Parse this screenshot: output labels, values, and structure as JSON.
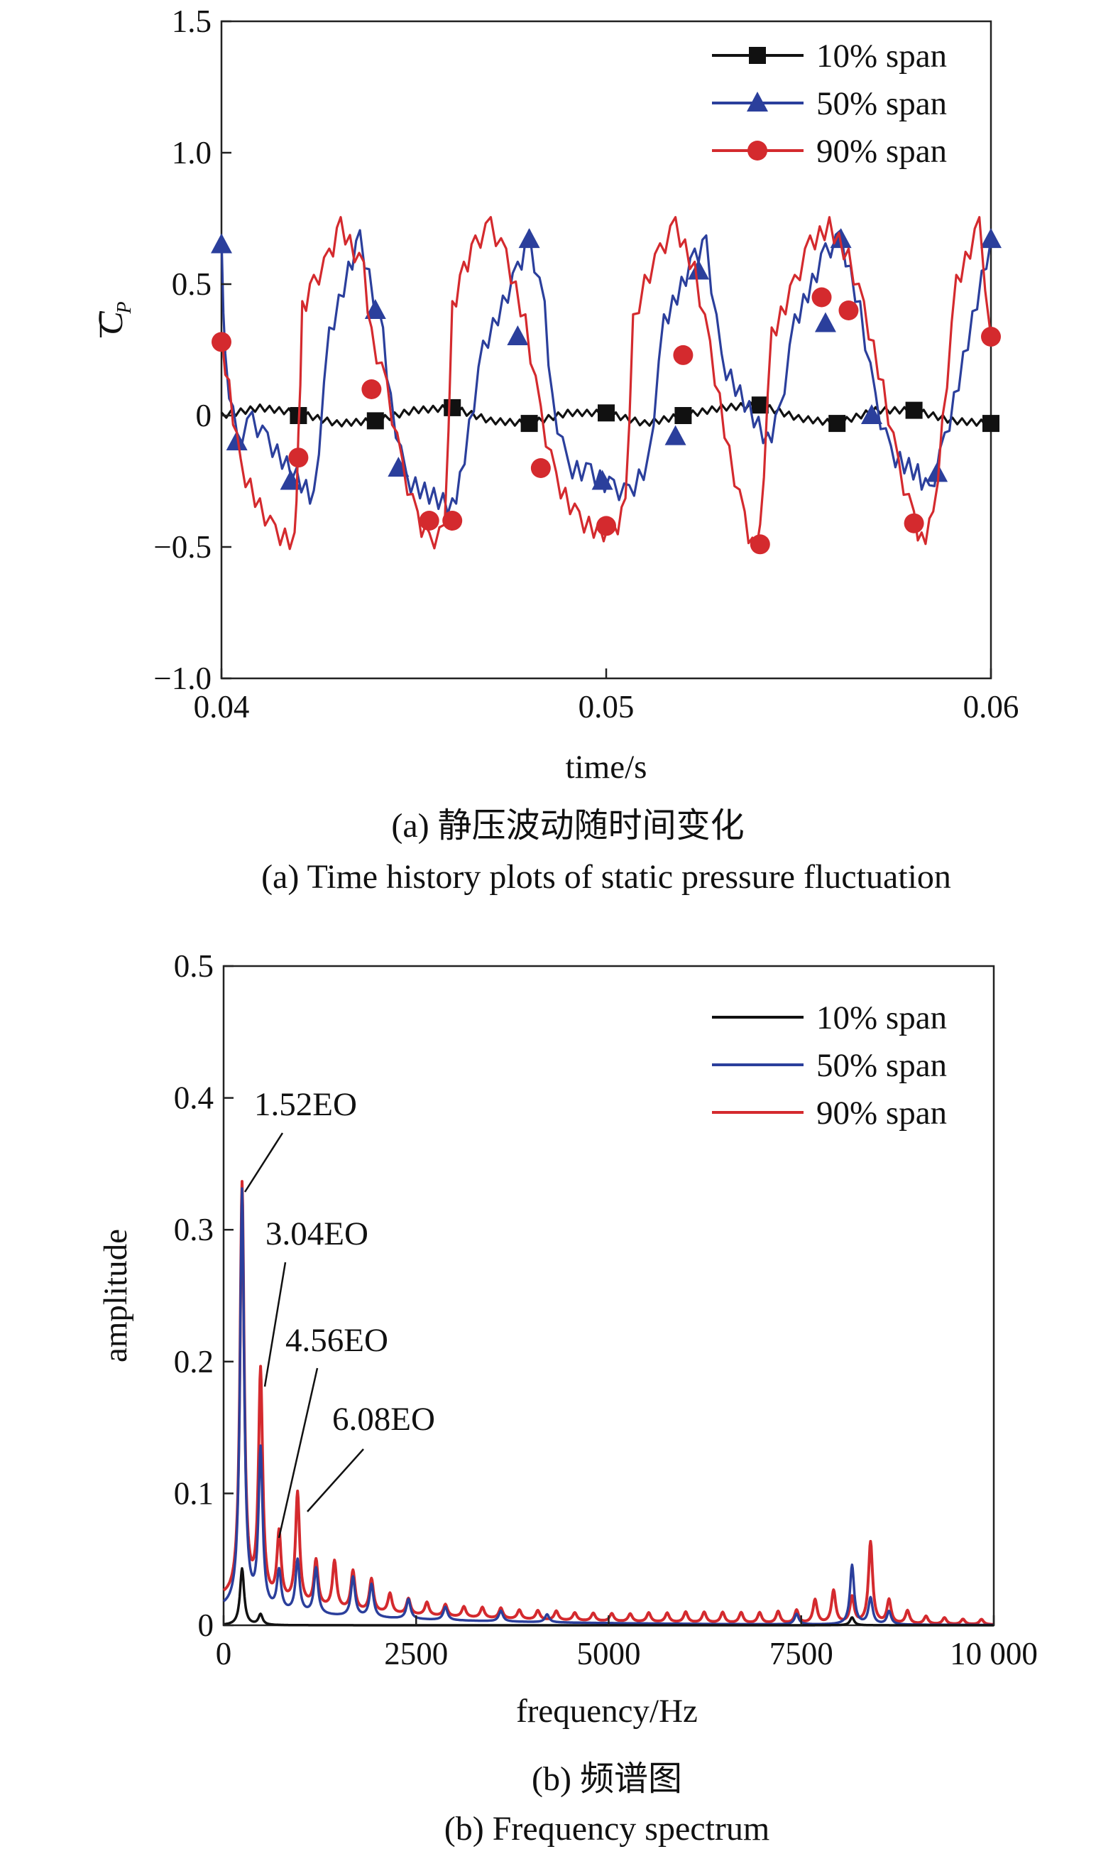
{
  "chart_data": [
    {
      "id": "a",
      "type": "line",
      "title": "",
      "xlabel": "time/s",
      "ylabel": "C̄P",
      "xlim": [
        0.04,
        0.06
      ],
      "ylim": [
        -1.0,
        1.5
      ],
      "xticks": [
        0.04,
        0.05,
        0.06
      ],
      "xtick_labels": [
        "0.04",
        "0.05",
        "0.06"
      ],
      "yticks": [
        -1.0,
        -0.5,
        0,
        0.5,
        1.0,
        1.5
      ],
      "ytick_labels": [
        "−1.0",
        "−0.5",
        "0",
        "0.5",
        "1.0",
        "1.5"
      ],
      "legend_position": "top-right",
      "caption_cn": "(a) 静压波动随时间变化",
      "caption_en": "(a) Time history plots of static pressure fluctuation",
      "series": [
        {
          "name": "10% span",
          "label": "10% span",
          "color": "#111111",
          "marker": "square",
          "x": [
            0.04,
            0.041,
            0.042,
            0.043,
            0.044,
            0.045,
            0.046,
            0.047,
            0.048,
            0.049,
            0.05,
            0.051,
            0.052,
            0.053,
            0.054,
            0.055,
            0.056,
            0.057,
            0.058,
            0.059,
            0.06
          ],
          "y": [
            0.0,
            0.03,
            0.01,
            -0.03,
            -0.02,
            0.02,
            0.03,
            -0.02,
            -0.03,
            0.01,
            0.01,
            -0.03,
            0.0,
            0.03,
            0.04,
            -0.01,
            -0.03,
            0.02,
            0.02,
            -0.02,
            -0.03
          ],
          "marker_x": [
            0.042,
            0.044,
            0.046,
            0.048,
            0.05,
            0.052,
            0.054,
            0.056,
            0.058,
            0.06
          ],
          "marker_y": [
            0.0,
            -0.02,
            0.03,
            -0.03,
            0.01,
            0.0,
            0.04,
            -0.03,
            0.02,
            -0.03
          ]
        },
        {
          "name": "50% span",
          "label": "50% span",
          "color": "#2b3f9c",
          "marker": "triangle",
          "x": [
            0.04,
            0.0401,
            0.0404,
            0.0408,
            0.0412,
            0.0422,
            0.0424,
            0.0428,
            0.0433,
            0.0436,
            0.0442,
            0.0444,
            0.0448,
            0.046,
            0.0462,
            0.0468,
            0.0477,
            0.048,
            0.0484,
            0.0486,
            0.049,
            0.0496,
            0.0502,
            0.0506,
            0.0511,
            0.0515,
            0.0523,
            0.0526,
            0.053,
            0.0542,
            0.0545,
            0.0549,
            0.0557,
            0.0561,
            0.0566,
            0.057,
            0.0574,
            0.0581,
            0.0584,
            0.0588,
            0.06
          ],
          "y": [
            0.65,
            0.2,
            -0.1,
            -0.02,
            -0.1,
            -0.28,
            -0.32,
            0.3,
            0.55,
            0.67,
            0.3,
            0.05,
            -0.25,
            -0.35,
            -0.25,
            0.25,
            0.55,
            0.67,
            0.4,
            0.05,
            -0.2,
            -0.22,
            -0.28,
            -0.3,
            -0.18,
            0.35,
            0.6,
            0.65,
            0.2,
            -0.1,
            0.0,
            0.35,
            0.62,
            0.67,
            0.4,
            0.05,
            -0.15,
            -0.22,
            -0.3,
            -0.1,
            0.67
          ],
          "marker_x": [
            0.04,
            0.0404,
            0.0418,
            0.044,
            0.0446,
            0.0477,
            0.048,
            0.0499,
            0.0518,
            0.0524,
            0.0557,
            0.0561,
            0.0569,
            0.0586,
            0.06
          ],
          "marker_y": [
            0.65,
            -0.1,
            -0.25,
            0.4,
            -0.2,
            0.3,
            0.67,
            -0.25,
            -0.08,
            0.55,
            0.35,
            0.67,
            0.0,
            -0.22,
            0.67
          ]
        },
        {
          "name": "90% span",
          "label": "90% span",
          "color": "#d42a2e",
          "marker": "circle",
          "x": [
            0.04,
            0.0402,
            0.0405,
            0.041,
            0.0414,
            0.0419,
            0.042,
            0.0421,
            0.0424,
            0.0428,
            0.0431,
            0.0437,
            0.0439,
            0.0443,
            0.0447,
            0.0451,
            0.0454,
            0.0458,
            0.046,
            0.0463,
            0.0466,
            0.047,
            0.0474,
            0.0479,
            0.0483,
            0.0487,
            0.0493,
            0.0498,
            0.0502,
            0.0505,
            0.0507,
            0.051,
            0.0514,
            0.0518,
            0.0523,
            0.0527,
            0.0532,
            0.0536,
            0.0538,
            0.054,
            0.0543,
            0.0549,
            0.0553,
            0.0558,
            0.0563,
            0.0567,
            0.0572,
            0.0576,
            0.058,
            0.0582,
            0.0585,
            0.0591,
            0.0597,
            0.06
          ],
          "y": [
            0.28,
            0.1,
            -0.2,
            -0.35,
            -0.45,
            -0.48,
            -0.1,
            0.4,
            0.5,
            0.6,
            0.72,
            0.55,
            0.3,
            0.1,
            -0.2,
            -0.4,
            -0.48,
            -0.45,
            0.4,
            0.55,
            0.65,
            0.72,
            0.6,
            0.35,
            0.0,
            -0.25,
            -0.4,
            -0.44,
            -0.45,
            -0.35,
            0.35,
            0.5,
            0.62,
            0.72,
            0.55,
            0.25,
            -0.15,
            -0.4,
            -0.5,
            -0.45,
            0.3,
            0.5,
            0.65,
            0.72,
            0.6,
            0.4,
            0.1,
            -0.2,
            -0.4,
            -0.48,
            -0.4,
            0.5,
            0.72,
            0.3
          ],
          "marker_x": [
            0.04,
            0.042,
            0.0439,
            0.0454,
            0.046,
            0.0483,
            0.05,
            0.052,
            0.054,
            0.0556,
            0.0563,
            0.058,
            0.06
          ],
          "marker_y": [
            0.28,
            -0.16,
            0.1,
            -0.4,
            -0.4,
            -0.2,
            -0.42,
            0.23,
            -0.49,
            0.45,
            0.4,
            -0.41,
            0.3
          ]
        }
      ]
    },
    {
      "id": "b",
      "type": "line",
      "title": "",
      "xlabel": "frequency/Hz",
      "ylabel": "amplitude",
      "xlim": [
        0,
        10000
      ],
      "ylim": [
        0,
        0.5
      ],
      "xticks": [
        0,
        2500,
        5000,
        7500,
        10000
      ],
      "xtick_labels": [
        "0",
        "2500",
        "5000",
        "7500",
        "10 000"
      ],
      "yticks": [
        0,
        0.1,
        0.2,
        0.3,
        0.4,
        0.5
      ],
      "ytick_labels": [
        "0",
        "0.1",
        "0.2",
        "0.3",
        "0.4",
        "0.5"
      ],
      "legend_position": "top-right",
      "caption_cn": "(b) 频谱图",
      "caption_en": "(b) Frequency spectrum",
      "annotations": [
        {
          "text": "1.52EO",
          "x": 240,
          "y": 0.318
        },
        {
          "text": "3.04EO",
          "x": 480,
          "y": 0.18
        },
        {
          "text": "4.56EO",
          "x": 720,
          "y": 0.065
        },
        {
          "text": "6.08EO",
          "x": 960,
          "y": 0.085
        }
      ],
      "series": [
        {
          "name": "10% span",
          "label": "10% span",
          "color": "#111111",
          "baseline": 0.0,
          "peaks": [
            [
              240,
              0.043
            ],
            [
              480,
              0.008
            ],
            [
              8160,
              0.006
            ]
          ]
        },
        {
          "name": "50% span",
          "label": "50% span",
          "color": "#2b3f9c",
          "baseline": 0.012,
          "peaks": [
            [
              240,
              0.318
            ],
            [
              480,
              0.12
            ],
            [
              720,
              0.03
            ],
            [
              960,
              0.04
            ],
            [
              1200,
              0.035
            ],
            [
              1680,
              0.03
            ],
            [
              1920,
              0.025
            ],
            [
              2400,
              0.015
            ],
            [
              2880,
              0.01
            ],
            [
              3600,
              0.008
            ],
            [
              4200,
              0.006
            ],
            [
              7440,
              0.008
            ],
            [
              8160,
              0.045
            ],
            [
              8400,
              0.02
            ],
            [
              8640,
              0.01
            ]
          ]
        },
        {
          "name": "90% span",
          "label": "90% span",
          "color": "#d42a2e",
          "baseline": 0.02,
          "peaks": [
            [
              240,
              0.315
            ],
            [
              480,
              0.173
            ],
            [
              720,
              0.052
            ],
            [
              960,
              0.085
            ],
            [
              1200,
              0.035
            ],
            [
              1440,
              0.036
            ],
            [
              1680,
              0.03
            ],
            [
              1920,
              0.025
            ],
            [
              2160,
              0.015
            ],
            [
              2400,
              0.012
            ],
            [
              2640,
              0.01
            ],
            [
              2880,
              0.009
            ],
            [
              3120,
              0.008
            ],
            [
              3360,
              0.008
            ],
            [
              3600,
              0.008
            ],
            [
              3840,
              0.007
            ],
            [
              4080,
              0.007
            ],
            [
              4320,
              0.007
            ],
            [
              4560,
              0.006
            ],
            [
              4800,
              0.006
            ],
            [
              5040,
              0.006
            ],
            [
              5280,
              0.006
            ],
            [
              5520,
              0.007
            ],
            [
              5760,
              0.007
            ],
            [
              6000,
              0.008
            ],
            [
              6240,
              0.008
            ],
            [
              6480,
              0.008
            ],
            [
              6720,
              0.008
            ],
            [
              6960,
              0.008
            ],
            [
              7200,
              0.009
            ],
            [
              7440,
              0.01
            ],
            [
              7680,
              0.018
            ],
            [
              7920,
              0.025
            ],
            [
              8160,
              0.02
            ],
            [
              8400,
              0.062
            ],
            [
              8640,
              0.018
            ],
            [
              8880,
              0.01
            ],
            [
              9120,
              0.006
            ],
            [
              9360,
              0.005
            ],
            [
              9600,
              0.004
            ],
            [
              9840,
              0.004
            ]
          ]
        }
      ]
    }
  ]
}
